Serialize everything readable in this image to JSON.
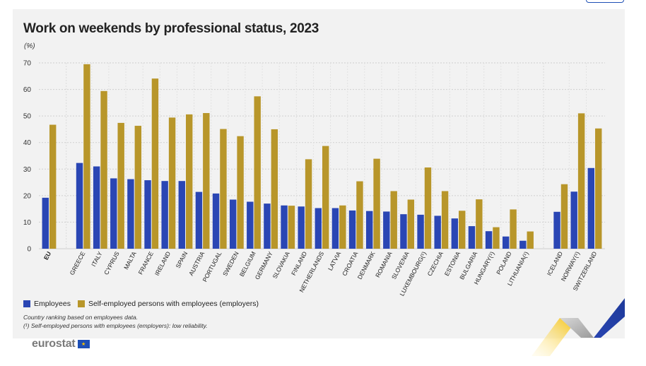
{
  "title": "Work on weekends by professional status, 2023",
  "unit": "(%)",
  "legend": {
    "employees": "Employees",
    "employers": "Self-employed persons with employees (employers)"
  },
  "notes": {
    "ranking": "Country ranking based on employees data.",
    "reliability_mark": "(¹)",
    "reliability": " Self-employed persons with employees (employers): low reliability."
  },
  "logo": {
    "text": "eurostat",
    "flag_icon": "eu-flag-icon"
  },
  "colors": {
    "employees": "#2a46b4",
    "employers": "#b8962a",
    "grid": "#cfcfcf"
  },
  "chart_data": {
    "type": "bar",
    "title": "Work on weekends by professional status, 2023",
    "ylabel": "(%)",
    "ylim": [
      0,
      70
    ],
    "yticks": [
      0,
      10,
      20,
      30,
      40,
      50,
      60,
      70
    ],
    "grid": true,
    "legend_position": "bottom-left",
    "groups": [
      [
        "EU"
      ],
      [
        "GREECE",
        "ITALY",
        "CYPRUS",
        "MALTA",
        "FRANCE",
        "IRELAND",
        "SPAIN",
        "AUSTRIA",
        "PORTUGAL",
        "SWEDEN",
        "BELGIUM",
        "GERMANY",
        "SLOVAKIA",
        "FINLAND",
        "NETHERLANDS",
        "LATVIA",
        "CROATIA",
        "DENMARK",
        "ROMANIA",
        "SLOVENIA",
        "LUXEMBOURG(¹)",
        "CZECHIA",
        "ESTONIA",
        "BULGARIA",
        "HUNGARY(¹)",
        "POLAND",
        "LITHUANIA(¹)"
      ],
      [
        "ICELAND",
        "NORWAY(¹)",
        "SWITZERLAND"
      ]
    ],
    "categories": [
      "EU",
      "GREECE",
      "ITALY",
      "CYPRUS",
      "MALTA",
      "FRANCE",
      "IRELAND",
      "SPAIN",
      "AUSTRIA",
      "PORTUGAL",
      "SWEDEN",
      "BELGIUM",
      "GERMANY",
      "SLOVAKIA",
      "FINLAND",
      "NETHERLANDS",
      "LATVIA",
      "CROATIA",
      "DENMARK",
      "ROMANIA",
      "SLOVENIA",
      "LUXEMBOURG(¹)",
      "CZECHIA",
      "ESTONIA",
      "BULGARIA",
      "HUNGARY(¹)",
      "POLAND",
      "LITHUANIA(¹)",
      "ICELAND",
      "NORWAY(¹)",
      "SWITZERLAND"
    ],
    "series": [
      {
        "name": "Employees",
        "values": [
          19.2,
          32.3,
          31.0,
          26.5,
          26.2,
          25.8,
          25.5,
          25.5,
          21.4,
          20.8,
          18.5,
          17.7,
          17.0,
          16.3,
          15.9,
          15.3,
          15.3,
          14.4,
          14.2,
          14.0,
          13.0,
          12.8,
          12.4,
          11.4,
          8.5,
          6.6,
          4.6,
          3.0,
          13.9,
          21.5,
          30.4
        ]
      },
      {
        "name": "Self-employed persons with employees (employers)",
        "values": [
          46.7,
          69.5,
          59.4,
          47.4,
          46.3,
          64.1,
          49.4,
          50.6,
          51.1,
          45.1,
          42.4,
          57.4,
          45.0,
          16.2,
          33.7,
          38.7,
          16.3,
          25.4,
          33.9,
          21.7,
          18.5,
          30.6,
          21.7,
          14.3,
          18.6,
          8.1,
          14.8,
          6.5,
          24.3,
          51.0,
          45.3
        ]
      }
    ]
  }
}
